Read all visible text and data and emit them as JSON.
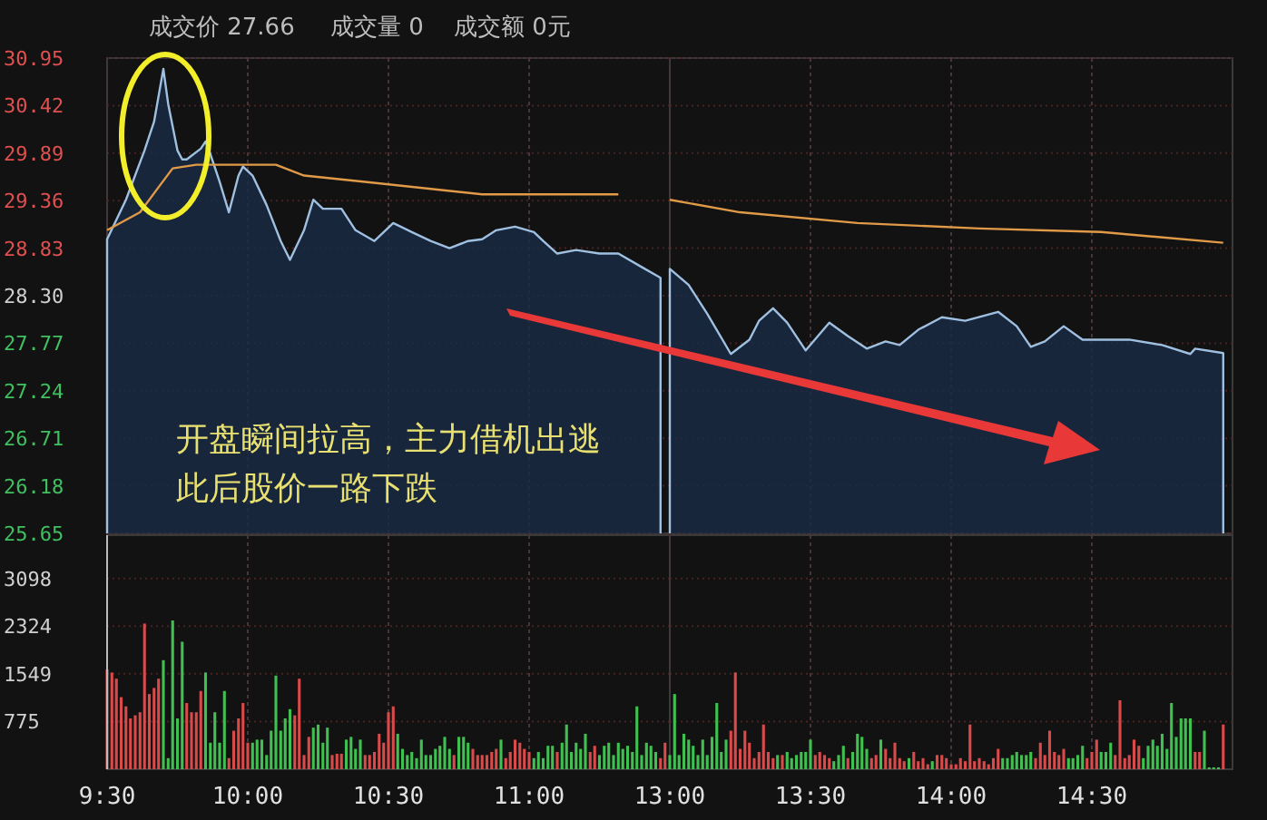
{
  "chart_data": [
    {
      "type": "line",
      "xlim": [
        9.5,
        11.5
      ],
      "xticks": [
        {
          "value": 9.5,
          "label": null
        },
        {
          "value": 10,
          "label": null
        },
        {
          "value": 10.5,
          "label": null
        },
        {
          "value": 11,
          "label": null
        }
      ],
      "ylim": [
        25.65,
        30.95
      ],
      "yticks": [
        30.95,
        30.42,
        29.89,
        29.36,
        28.83,
        {
          "value": 28.3,
          "label": "28.30"
        },
        27.77,
        27.24,
        26.71,
        26.18,
        25.65
      ],
      "tick_labels": "y",
      "grid": true,
      "annotations": [
        "成交价 27.66",
        "成交量 0",
        "成交额 0元",
        "开盘瞬间拉高，主力借机出逃",
        "此后股价一路下跌"
      ],
      "series": [
        {
          "type": "area",
          "color": "#9fc0e0",
          "x": [
            9.5,
            9.567,
            9.633,
            9.667,
            9.7,
            9.717,
            9.75,
            9.767,
            9.783,
            9.833,
            9.85,
            9.867,
            9.9,
            9.933,
            9.967,
            9.983,
            10.017,
            10.067,
            10.117,
            10.15,
            10.2,
            10.233,
            10.267,
            10.333,
            10.383,
            10.45,
            10.517,
            10.583,
            10.65,
            10.717,
            10.783,
            10.833,
            10.883,
            10.95,
            11.017,
            11.05,
            11.1,
            11.167,
            11.25,
            11.317,
            11.4,
            11.467
          ],
          "values": [
            28.93,
            29.37,
            29.92,
            30.24,
            30.83,
            30.44,
            29.92,
            29.82,
            29.82,
            29.94,
            30.02,
            29.88,
            29.57,
            29.23,
            29.64,
            29.74,
            29.64,
            29.31,
            28.91,
            28.7,
            29.03,
            29.37,
            29.27,
            29.27,
            29.03,
            28.91,
            29.11,
            29.01,
            28.91,
            28.83,
            28.91,
            28.93,
            29.03,
            29.07,
            29.01,
            28.91,
            28.77,
            28.81,
            28.77,
            28.77,
            28.62,
            28.5
          ]
        },
        {
          "color": "#e09a48",
          "x": [
            9.5,
            9.617,
            9.683,
            9.733,
            9.817,
            10.1,
            10.2,
            10.417,
            10.833,
            11.317
          ],
          "values": [
            29.03,
            29.23,
            29.51,
            29.72,
            29.76,
            29.76,
            29.64,
            29.57,
            29.43,
            29.43
          ]
        }
      ]
    },
    {
      "type": "line",
      "xlim": [
        13,
        15
      ],
      "xticks": [
        {
          "value": 13,
          "label": null
        },
        {
          "value": 13.5,
          "label": null
        },
        {
          "value": 14,
          "label": null
        },
        {
          "value": 14.5,
          "label": null
        }
      ],
      "ylim": [
        25.65,
        30.95
      ],
      "yticks": [
        {
          "value": 30.95,
          "label": null
        },
        {
          "value": 30.42,
          "label": null
        },
        {
          "value": 29.89,
          "label": null
        },
        {
          "value": 29.36,
          "label": null
        },
        {
          "value": 28.83,
          "label": null
        },
        {
          "value": 28.3,
          "label": null
        },
        {
          "value": 27.77,
          "label": null
        },
        {
          "value": 27.24,
          "label": null
        },
        {
          "value": 26.71,
          "label": null
        },
        {
          "value": 26.18,
          "label": null
        },
        {
          "value": 25.65,
          "label": null
        }
      ],
      "tick_labels": false,
      "grid": true,
      "series": [
        {
          "type": "area",
          "color": "#9fc0e0",
          "x": [
            13.0,
            13.067,
            13.133,
            13.217,
            13.283,
            13.317,
            13.367,
            13.417,
            13.483,
            13.567,
            13.633,
            13.7,
            13.767,
            13.817,
            13.883,
            13.967,
            14.05,
            14.167,
            14.233,
            14.283,
            14.333,
            14.4,
            14.467,
            14.533,
            14.633,
            14.75,
            14.85,
            14.867,
            14.967
          ],
          "values": [
            28.6,
            28.42,
            28.1,
            27.65,
            27.81,
            28.02,
            28.16,
            28.0,
            27.69,
            28.0,
            27.85,
            27.71,
            27.79,
            27.75,
            27.92,
            28.06,
            28.02,
            28.12,
            27.96,
            27.73,
            27.79,
            27.96,
            27.81,
            27.81,
            27.81,
            27.75,
            27.65,
            27.71,
            27.66
          ]
        },
        {
          "color": "#e09a48",
          "x": [
            13.0,
            13.25,
            13.667,
            14.1,
            14.533,
            14.967
          ],
          "values": [
            29.37,
            29.23,
            29.11,
            29.05,
            29.01,
            28.89
          ]
        }
      ]
    },
    {
      "type": "bar",
      "xlim": [
        9.5,
        11.5
      ],
      "xticks": [
        {
          "value": 9.5,
          "label": "9:30"
        },
        {
          "value": 10,
          "label": "10:00"
        },
        {
          "value": 10.5,
          "label": "10:30"
        },
        {
          "value": 11,
          "label": "11:00"
        }
      ],
      "ylim": [
        0,
        3800
      ],
      "yticks": [
        775,
        1549,
        2324,
        3098
      ],
      "grid": true,
      "x": [
        9.5,
        9.517,
        9.533,
        9.55,
        9.567,
        9.583,
        9.6,
        9.617,
        9.633,
        9.65,
        9.667,
        9.683,
        9.7,
        9.717,
        9.733,
        9.75,
        9.767,
        9.783,
        9.8,
        9.817,
        9.833,
        9.85,
        9.867,
        9.883,
        9.9,
        9.917,
        9.933,
        9.95,
        9.967,
        9.983,
        10,
        10.017,
        10.033,
        10.05,
        10.067,
        10.083,
        10.1,
        10.117,
        10.133,
        10.15,
        10.167,
        10.183,
        10.2,
        10.217,
        10.233,
        10.25,
        10.267,
        10.283,
        10.3,
        10.317,
        10.333,
        10.35,
        10.367,
        10.383,
        10.4,
        10.417,
        10.433,
        10.45,
        10.467,
        10.483,
        10.5,
        10.517,
        10.533,
        10.55,
        10.567,
        10.583,
        10.6,
        10.617,
        10.633,
        10.65,
        10.667,
        10.683,
        10.7,
        10.717,
        10.733,
        10.75,
        10.767,
        10.783,
        10.8,
        10.817,
        10.833,
        10.85,
        10.867,
        10.883,
        10.9,
        10.917,
        10.933,
        10.95,
        10.967,
        10.983,
        11,
        11.017,
        11.033,
        11.05,
        11.067,
        11.083,
        11.1,
        11.117,
        11.133,
        11.15,
        11.167,
        11.183,
        11.2,
        11.217,
        11.233,
        11.25,
        11.267,
        11.283,
        11.3,
        11.317,
        11.333,
        11.35,
        11.367,
        11.383,
        11.4,
        11.417,
        11.433,
        11.45,
        11.467,
        11.483
      ],
      "values": [
        1620,
        1570,
        1470,
        1170,
        1020,
        825,
        875,
        925,
        2365,
        1220,
        1320,
        1470,
        1770,
        180,
        2415,
        825,
        2070,
        1075,
        925,
        925,
        1270,
        1570,
        430,
        925,
        430,
        1270,
        180,
        625,
        825,
        1075,
        430,
        430,
        480,
        480,
        230,
        625,
        1520,
        625,
        825,
        975,
        875,
        1470,
        230,
        525,
        675,
        725,
        430,
        675,
        230,
        250,
        250,
        480,
        525,
        330,
        480,
        230,
        230,
        280,
        575,
        430,
        925,
        1020,
        575,
        330,
        230,
        280,
        180,
        480,
        230,
        230,
        330,
        380,
        525,
        330,
        230,
        525,
        525,
        430,
        330,
        230,
        230,
        230,
        280,
        330,
        480,
        180,
        280,
        480,
        430,
        330,
        280,
        180,
        280,
        180,
        380,
        380,
        280,
        430,
        725,
        280,
        430,
        330,
        575,
        280,
        380,
        230,
        380,
        430,
        230,
        430,
        330,
        380,
        280,
        1020,
        230,
        430,
        380,
        280,
        180,
        430
      ],
      "colors": [
        "#d94a4a",
        "#d94a4a",
        "#d94a4a",
        "#d94a4a",
        "#d94a4a",
        "#d94a4a",
        "#d94a4a",
        "#d94a4a",
        "#d94a4a",
        "#d94a4a",
        "#d94a4a",
        "#d94a4a",
        "#40c050",
        "#40c050",
        "#40c050",
        "#40c050",
        "#40c050",
        "#d94a4a",
        "#d94a4a",
        "#d94a4a",
        "#d94a4a",
        "#40c050",
        "#40c050",
        "#40c050",
        "#40c050",
        "#40c050",
        "#d94a4a",
        "#d94a4a",
        "#d94a4a",
        "#d94a4a",
        "#d94a4a",
        "#40c050",
        "#40c050",
        "#40c050",
        "#40c050",
        "#40c050",
        "#40c050",
        "#40c050",
        "#40c050",
        "#40c050",
        "#d94a4a",
        "#d94a4a",
        "#d94a4a",
        "#d94a4a",
        "#40c050",
        "#40c050",
        "#40c050",
        "#40c050",
        "#d94a4a",
        "#d94a4a",
        "#d94a4a",
        "#40c050",
        "#40c050",
        "#40c050",
        "#40c050",
        "#d94a4a",
        "#d94a4a",
        "#d94a4a",
        "#d94a4a",
        "#d94a4a",
        "#d94a4a",
        "#d94a4a",
        "#40c050",
        "#40c050",
        "#40c050",
        "#40c050",
        "#40c050",
        "#40c050",
        "#40c050",
        "#40c050",
        "#40c050",
        "#40c050",
        "#40c050",
        "#40c050",
        "#d94a4a",
        "#40c050",
        "#40c050",
        "#40c050",
        "#d94a4a",
        "#d94a4a",
        "#d94a4a",
        "#d94a4a",
        "#d94a4a",
        "#d94a4a",
        "#40c050",
        "#d94a4a",
        "#d94a4a",
        "#d94a4a",
        "#d94a4a",
        "#d94a4a",
        "#d94a4a",
        "#40c050",
        "#40c050",
        "#40c050",
        "#40c050",
        "#40c050",
        "#d94a4a",
        "#40c050",
        "#40c050",
        "#40c050",
        "#40c050",
        "#40c050",
        "#40c050",
        "#d94a4a",
        "#d94a4a",
        "#40c050",
        "#40c050",
        "#40c050",
        "#40c050",
        "#40c050",
        "#40c050",
        "#40c050",
        "#40c050",
        "#40c050",
        "#40c050",
        "#40c050",
        "#40c050",
        "#40c050",
        "#d94a4a",
        "#d94a4a"
      ]
    },
    {
      "type": "bar",
      "xlim": [
        13,
        15
      ],
      "xticks": [
        {
          "value": 13,
          "label": "13:00"
        },
        {
          "value": 13.5,
          "label": "13:30"
        },
        {
          "value": 14,
          "label": "14:00"
        },
        {
          "value": 14.5,
          "label": "14:30"
        }
      ],
      "ylim": [
        0,
        3800
      ],
      "yticks": [
        {
          "value": 775,
          "label": null
        },
        {
          "value": 1549,
          "label": null
        },
        {
          "value": 2324,
          "label": null
        },
        {
          "value": 3098,
          "label": null
        }
      ],
      "tick_labels": "x",
      "grid": true,
      "x": [
        13,
        13.017,
        13.033,
        13.05,
        13.067,
        13.083,
        13.1,
        13.117,
        13.133,
        13.15,
        13.167,
        13.183,
        13.2,
        13.217,
        13.233,
        13.25,
        13.267,
        13.283,
        13.3,
        13.317,
        13.333,
        13.35,
        13.367,
        13.383,
        13.4,
        13.417,
        13.433,
        13.45,
        13.467,
        13.483,
        13.5,
        13.517,
        13.533,
        13.55,
        13.567,
        13.583,
        13.6,
        13.617,
        13.633,
        13.65,
        13.667,
        13.683,
        13.7,
        13.717,
        13.733,
        13.75,
        13.767,
        13.783,
        13.8,
        13.817,
        13.833,
        13.85,
        13.867,
        13.883,
        13.9,
        13.917,
        13.933,
        13.95,
        13.967,
        13.983,
        14,
        14.017,
        14.033,
        14.05,
        14.067,
        14.083,
        14.1,
        14.117,
        14.133,
        14.15,
        14.167,
        14.183,
        14.2,
        14.217,
        14.233,
        14.25,
        14.267,
        14.283,
        14.3,
        14.317,
        14.333,
        14.35,
        14.367,
        14.383,
        14.4,
        14.417,
        14.433,
        14.45,
        14.467,
        14.483,
        14.5,
        14.517,
        14.533,
        14.55,
        14.567,
        14.583,
        14.6,
        14.617,
        14.633,
        14.65,
        14.667,
        14.683,
        14.7,
        14.717,
        14.733,
        14.75,
        14.767,
        14.783,
        14.8,
        14.817,
        14.833,
        14.85,
        14.867,
        14.883,
        14.9,
        14.917,
        14.933,
        14.95,
        14.967
      ],
      "values": [
        230,
        1220,
        230,
        575,
        480,
        380,
        230,
        480,
        230,
        525,
        1075,
        280,
        480,
        625,
        1570,
        330,
        625,
        430,
        180,
        280,
        725,
        280,
        180,
        230,
        230,
        280,
        180,
        230,
        280,
        280,
        480,
        230,
        280,
        230,
        180,
        130,
        230,
        380,
        180,
        280,
        575,
        525,
        330,
        180,
        230,
        480,
        330,
        180,
        430,
        180,
        130,
        180,
        280,
        130,
        180,
        80,
        130,
        230,
        230,
        180,
        80,
        80,
        180,
        130,
        725,
        130,
        180,
        130,
        80,
        180,
        330,
        180,
        180,
        230,
        280,
        230,
        230,
        280,
        180,
        430,
        230,
        625,
        280,
        230,
        330,
        180,
        180,
        230,
        380,
        180,
        280,
        480,
        280,
        280,
        430,
        230,
        1120,
        180,
        230,
        480,
        380,
        180,
        380,
        480,
        380,
        575,
        330,
        1075,
        525,
        825,
        825,
        825,
        280,
        280,
        625,
        30,
        30,
        30,
        725
      ],
      "colors": [
        "#40c050",
        "#40c050",
        "#40c050",
        "#40c050",
        "#40c050",
        "#40c050",
        "#40c050",
        "#40c050",
        "#40c050",
        "#40c050",
        "#40c050",
        "#40c050",
        "#40c050",
        "#d94a4a",
        "#d94a4a",
        "#d94a4a",
        "#d94a4a",
        "#d94a4a",
        "#d94a4a",
        "#d94a4a",
        "#d94a4a",
        "#d94a4a",
        "#d94a4a",
        "#40c050",
        "#d94a4a",
        "#40c050",
        "#40c050",
        "#40c050",
        "#40c050",
        "#40c050",
        "#40c050",
        "#d94a4a",
        "#d94a4a",
        "#d94a4a",
        "#d94a4a",
        "#40c050",
        "#40c050",
        "#40c050",
        "#d94a4a",
        "#40c050",
        "#40c050",
        "#40c050",
        "#40c050",
        "#d94a4a",
        "#d94a4a",
        "#40c050",
        "#d94a4a",
        "#d94a4a",
        "#d94a4a",
        "#d94a4a",
        "#d94a4a",
        "#40c050",
        "#d94a4a",
        "#d94a4a",
        "#d94a4a",
        "#d94a4a",
        "#40c050",
        "#d94a4a",
        "#d94a4a",
        "#d94a4a",
        "#d94a4a",
        "#d94a4a",
        "#d94a4a",
        "#d94a4a",
        "#d94a4a",
        "#d94a4a",
        "#d94a4a",
        "#d94a4a",
        "#d94a4a",
        "#d94a4a",
        "#d94a4a",
        "#40c050",
        "#40c050",
        "#40c050",
        "#40c050",
        "#40c050",
        "#40c050",
        "#40c050",
        "#d94a4a",
        "#d94a4a",
        "#d94a4a",
        "#d94a4a",
        "#d94a4a",
        "#d94a4a",
        "#d94a4a",
        "#40c050",
        "#40c050",
        "#40c050",
        "#40c050",
        "#d94a4a",
        "#d94a4a",
        "#d94a4a",
        "#40c050",
        "#40c050",
        "#40c050",
        "#d94a4a",
        "#d94a4a",
        "#d94a4a",
        "#d94a4a",
        "#d94a4a",
        "#d94a4a",
        "#40c050",
        "#40c050",
        "#40c050",
        "#40c050",
        "#40c050",
        "#40c050",
        "#40c050",
        "#40c050",
        "#40c050",
        "#40c050",
        "#40c050",
        "#d94a4a",
        "#d94a4a",
        "#40c050",
        "#40c050",
        "#40c050",
        "#40c050",
        "#d94a4a"
      ]
    }
  ]
}
